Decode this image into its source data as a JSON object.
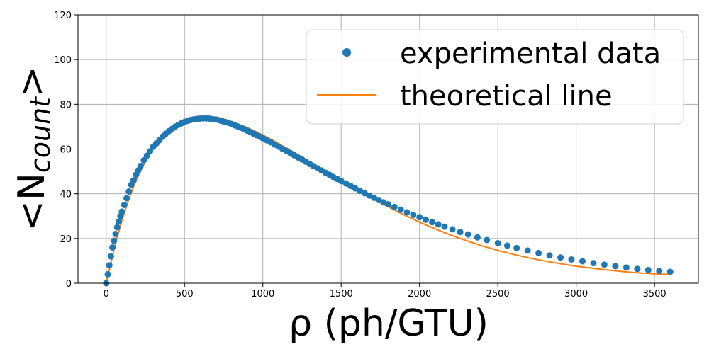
{
  "chart_data": {
    "type": "scatter",
    "title": "",
    "xlabel": "ρ (ph/GTU)",
    "ylabel_main": "<N",
    "ylabel_sub": "count",
    "ylabel_close": ">",
    "xlim": [
      -180,
      3780
    ],
    "ylim": [
      0,
      120
    ],
    "xticks": [
      0,
      500,
      1000,
      1500,
      2000,
      2500,
      3000,
      3500
    ],
    "xtick_labels": [
      "0",
      "500",
      "1000",
      "1500",
      "2000",
      "2500",
      "3000",
      "3500"
    ],
    "yticks": [
      0,
      20,
      40,
      60,
      80,
      100,
      120
    ],
    "ytick_labels": [
      "0",
      "20",
      "40",
      "60",
      "80",
      "100",
      "120"
    ],
    "grid": true,
    "legend_position": "top-right",
    "series": [
      {
        "name": "experimental data",
        "kind": "scatter",
        "color": "#1f77b4",
        "points": [
          [
            0,
            0
          ],
          [
            10,
            4
          ],
          [
            20,
            8
          ],
          [
            30,
            12
          ],
          [
            40,
            16
          ],
          [
            50,
            19
          ],
          [
            60,
            22
          ],
          [
            70,
            25
          ],
          [
            80,
            27.5
          ],
          [
            90,
            30
          ],
          [
            100,
            32
          ],
          [
            115,
            35
          ],
          [
            130,
            38
          ],
          [
            145,
            41
          ],
          [
            160,
            44
          ],
          [
            175,
            46
          ],
          [
            190,
            48.5
          ],
          [
            205,
            50.5
          ],
          [
            220,
            52.5
          ],
          [
            240,
            55
          ],
          [
            260,
            57
          ],
          [
            280,
            59
          ],
          [
            300,
            61
          ],
          [
            320,
            62.5
          ],
          [
            340,
            64
          ],
          [
            360,
            65.5
          ],
          [
            380,
            66.8
          ],
          [
            400,
            68
          ],
          [
            420,
            69
          ],
          [
            440,
            70
          ],
          [
            460,
            70.8
          ],
          [
            480,
            71.5
          ],
          [
            500,
            72.1
          ],
          [
            520,
            72.6
          ],
          [
            540,
            73
          ],
          [
            560,
            73.3
          ],
          [
            580,
            73.5
          ],
          [
            600,
            73.6
          ],
          [
            620,
            73.7
          ],
          [
            640,
            73.7
          ],
          [
            660,
            73.6
          ],
          [
            680,
            73.4
          ],
          [
            700,
            73.2
          ],
          [
            720,
            72.9
          ],
          [
            740,
            72.5
          ],
          [
            760,
            72.1
          ],
          [
            780,
            71.7
          ],
          [
            800,
            71.2
          ],
          [
            820,
            70.6
          ],
          [
            840,
            70.1
          ],
          [
            860,
            69.5
          ],
          [
            880,
            68.9
          ],
          [
            900,
            68.2
          ],
          [
            920,
            67.6
          ],
          [
            940,
            66.9
          ],
          [
            960,
            66.2
          ],
          [
            980,
            65.5
          ],
          [
            1000,
            64.8
          ],
          [
            1025,
            63.9
          ],
          [
            1050,
            63
          ],
          [
            1075,
            62
          ],
          [
            1100,
            61.1
          ],
          [
            1125,
            60.1
          ],
          [
            1150,
            59.2
          ],
          [
            1175,
            58.2
          ],
          [
            1200,
            57.2
          ],
          [
            1225,
            56.2
          ],
          [
            1250,
            55.3
          ],
          [
            1275,
            54.3
          ],
          [
            1300,
            53.3
          ],
          [
            1325,
            52.3
          ],
          [
            1350,
            51.4
          ],
          [
            1375,
            50.4
          ],
          [
            1400,
            49.4
          ],
          [
            1425,
            48.5
          ],
          [
            1450,
            47.5
          ],
          [
            1475,
            46.6
          ],
          [
            1500,
            45.7
          ],
          [
            1530,
            44.6
          ],
          [
            1560,
            43.5
          ],
          [
            1590,
            42.4
          ],
          [
            1620,
            41.3
          ],
          [
            1650,
            40.2
          ],
          [
            1680,
            39.2
          ],
          [
            1710,
            38.2
          ],
          [
            1740,
            37.2
          ],
          [
            1770,
            36.2
          ],
          [
            1800,
            35.3
          ],
          [
            1840,
            34.1
          ],
          [
            1880,
            32.9
          ],
          [
            1920,
            31.7
          ],
          [
            1960,
            30.6
          ],
          [
            2000,
            29.5
          ],
          [
            2040,
            28.4
          ],
          [
            2080,
            27.3
          ],
          [
            2120,
            26.3
          ],
          [
            2160,
            25.3
          ],
          [
            2210,
            24.1
          ],
          [
            2260,
            22.9
          ],
          [
            2310,
            21.8
          ],
          [
            2370,
            20.5
          ],
          [
            2430,
            19.3
          ],
          [
            2500,
            17.9
          ],
          [
            2560,
            16.8
          ],
          [
            2620,
            15.7
          ],
          [
            2690,
            14.6
          ],
          [
            2760,
            13.5
          ],
          [
            2830,
            12.4
          ],
          [
            2900,
            11.5
          ],
          [
            2970,
            10.6
          ],
          [
            3040,
            9.8
          ],
          [
            3110,
            9
          ],
          [
            3180,
            8.3
          ],
          [
            3250,
            7.6
          ],
          [
            3320,
            7
          ],
          [
            3390,
            6.4
          ],
          [
            3460,
            5.9
          ],
          [
            3530,
            5.5
          ],
          [
            3600,
            5.1
          ]
        ]
      },
      {
        "name": "theoretical line",
        "kind": "line",
        "color": "#ff7f0e",
        "points": [
          [
            0,
            0
          ],
          [
            20,
            6
          ],
          [
            40,
            12
          ],
          [
            60,
            18
          ],
          [
            80,
            23
          ],
          [
            100,
            28
          ],
          [
            130,
            34.5
          ],
          [
            160,
            40.5
          ],
          [
            200,
            47.5
          ],
          [
            250,
            54.5
          ],
          [
            300,
            60.5
          ],
          [
            350,
            65.5
          ],
          [
            400,
            69
          ],
          [
            450,
            71.5
          ],
          [
            500,
            73.2
          ],
          [
            550,
            74.2
          ],
          [
            600,
            74.6
          ],
          [
            650,
            74.6
          ],
          [
            700,
            74.2
          ],
          [
            750,
            73.4
          ],
          [
            800,
            72.3
          ],
          [
            900,
            69.6
          ],
          [
            1000,
            66.3
          ],
          [
            1100,
            62.5
          ],
          [
            1200,
            58.5
          ],
          [
            1300,
            54.3
          ],
          [
            1400,
            50
          ],
          [
            1500,
            45.8
          ],
          [
            1600,
            41.7
          ],
          [
            1700,
            37.8
          ],
          [
            1800,
            34.1
          ],
          [
            1900,
            30.6
          ],
          [
            2000,
            27.3
          ],
          [
            2100,
            24.3
          ],
          [
            2200,
            21.5
          ],
          [
            2300,
            19
          ],
          [
            2400,
            16.7
          ],
          [
            2500,
            14.7
          ],
          [
            2600,
            12.9
          ],
          [
            2700,
            11.3
          ],
          [
            2800,
            9.9
          ],
          [
            2900,
            8.7
          ],
          [
            3000,
            7.6
          ],
          [
            3100,
            6.7
          ],
          [
            3200,
            5.9
          ],
          [
            3300,
            5.2
          ],
          [
            3400,
            4.6
          ],
          [
            3500,
            4.2
          ],
          [
            3600,
            3.9
          ]
        ]
      }
    ]
  }
}
